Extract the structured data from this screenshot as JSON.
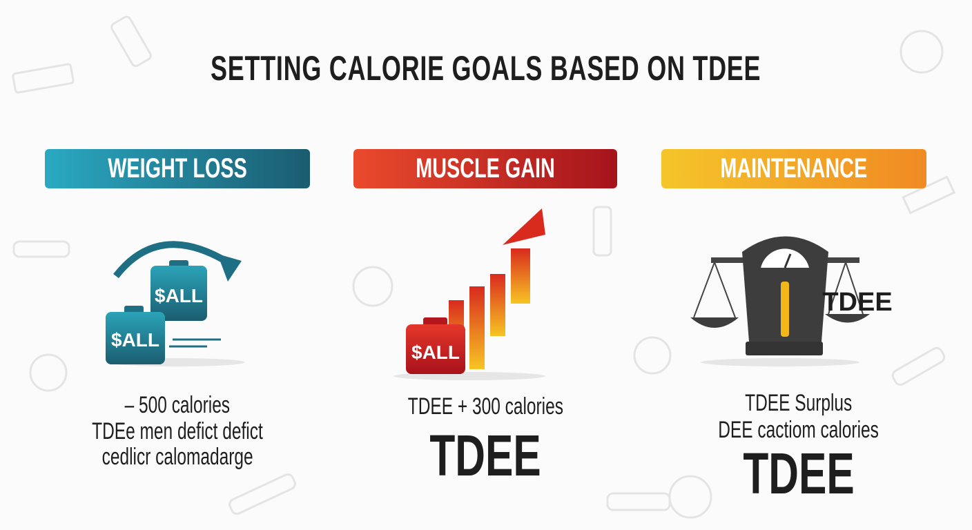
{
  "title": "SETTING CALORIE GOALS BASED ON TDEE",
  "columns": [
    {
      "header": "WEIGHT LOSS",
      "icon_labels": [
        "$ALL",
        "$ALL"
      ],
      "lines": [
        "– 500 calories",
        "TDEe men defict defict",
        "cedlicr calomadarge"
      ]
    },
    {
      "header": "MUSCLE GAIN",
      "icon_labels": [
        "$ALL"
      ],
      "lines": [
        "TDEE + 300 calories"
      ],
      "big_label": "TDEE"
    },
    {
      "header": "MAINTENANCE",
      "icon_labels": [
        "TDEE"
      ],
      "lines": [
        "TDEE Surplus",
        "DEE cactiom calories"
      ],
      "big_label": "TDEE"
    }
  ]
}
